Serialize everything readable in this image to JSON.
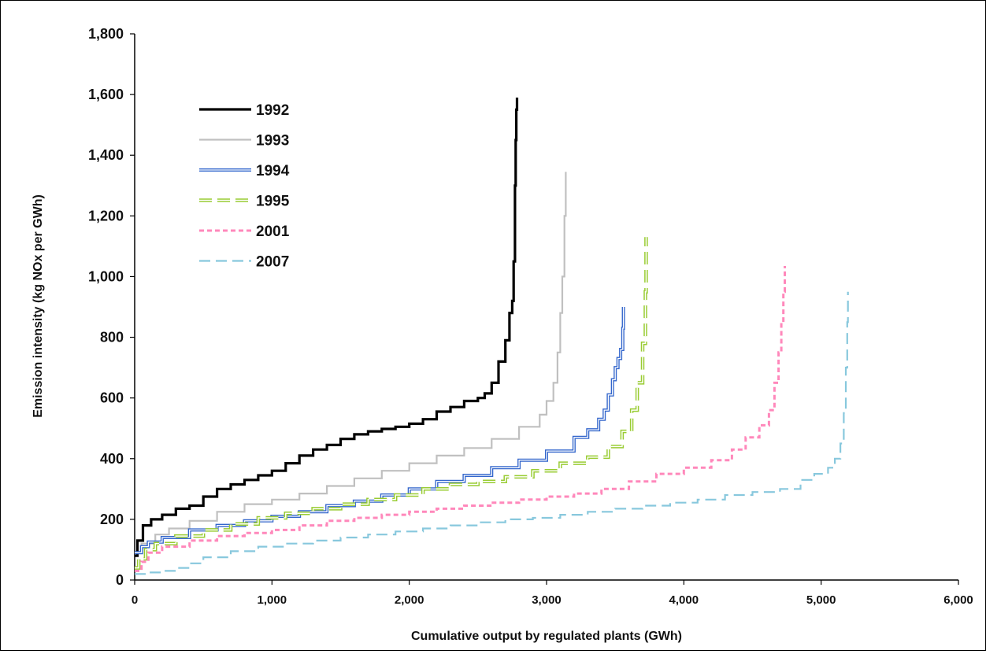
{
  "chart_data": {
    "type": "line",
    "title": "",
    "xlabel": "Cumulative output by regulated plants (GWh)",
    "ylabel": "Emission intensity (kg NOx per GWh)",
    "xlim": [
      0,
      6000
    ],
    "ylim": [
      0,
      1800
    ],
    "x_ticks": [
      0,
      1000,
      2000,
      3000,
      4000,
      5000,
      6000
    ],
    "x_tick_labels": [
      "0",
      "1,000",
      "2,000",
      "3,000",
      "4,000",
      "5,000",
      "6,000"
    ],
    "y_ticks": [
      0,
      200,
      400,
      600,
      800,
      1000,
      1200,
      1400,
      1600,
      1800
    ],
    "y_tick_labels": [
      "0",
      "200",
      "400",
      "600",
      "800",
      "1,000",
      "1,200",
      "1,400",
      "1,600",
      "1,800"
    ],
    "grid": false,
    "legend_position": "top-left",
    "series": [
      {
        "name": "1992",
        "color": "#000000",
        "style": "solid-thick",
        "x": [
          0,
          20,
          60,
          120,
          200,
          300,
          400,
          500,
          600,
          700,
          800,
          900,
          1000,
          1100,
          1200,
          1300,
          1400,
          1500,
          1600,
          1700,
          1800,
          1900,
          2000,
          2100,
          2200,
          2300,
          2400,
          2500,
          2550,
          2600,
          2650,
          2700,
          2730,
          2750,
          2760,
          2770,
          2775,
          2780,
          2785
        ],
        "y": [
          80,
          130,
          180,
          200,
          215,
          235,
          245,
          275,
          300,
          315,
          330,
          345,
          360,
          385,
          410,
          430,
          445,
          465,
          480,
          490,
          498,
          505,
          515,
          530,
          555,
          570,
          590,
          600,
          615,
          650,
          720,
          790,
          880,
          920,
          1050,
          1300,
          1450,
          1550,
          1590
        ]
      },
      {
        "name": "1993",
        "color": "#c0c0c0",
        "style": "solid",
        "x": [
          0,
          50,
          150,
          250,
          400,
          600,
          800,
          1000,
          1200,
          1400,
          1600,
          1800,
          2000,
          2200,
          2400,
          2600,
          2800,
          2950,
          3000,
          3050,
          3080,
          3100,
          3115,
          3130,
          3140
        ],
        "y": [
          90,
          120,
          150,
          170,
          195,
          225,
          250,
          265,
          285,
          310,
          335,
          360,
          385,
          410,
          435,
          465,
          505,
          545,
          590,
          650,
          750,
          880,
          1000,
          1200,
          1345
        ]
      },
      {
        "name": "1994",
        "color": "#3366cc",
        "style": "double",
        "x": [
          0,
          50,
          100,
          200,
          400,
          600,
          800,
          1000,
          1200,
          1400,
          1600,
          1800,
          2000,
          2200,
          2400,
          2600,
          2800,
          3000,
          3200,
          3300,
          3380,
          3420,
          3450,
          3480,
          3500,
          3520,
          3540,
          3555,
          3560
        ],
        "y": [
          90,
          110,
          125,
          140,
          165,
          180,
          195,
          210,
          225,
          245,
          260,
          280,
          300,
          325,
          345,
          370,
          395,
          425,
          470,
          495,
          530,
          560,
          610,
          660,
          700,
          730,
          760,
          830,
          900
        ]
      },
      {
        "name": "1995",
        "color": "#99cc33",
        "style": "dashed-double",
        "x": [
          0,
          30,
          80,
          150,
          300,
          500,
          700,
          900,
          1100,
          1300,
          1500,
          1700,
          1900,
          2100,
          2300,
          2500,
          2700,
          2900,
          3100,
          3300,
          3450,
          3550,
          3620,
          3660,
          3700,
          3720,
          3725
        ],
        "y": [
          40,
          70,
          100,
          120,
          145,
          165,
          185,
          205,
          220,
          235,
          250,
          265,
          280,
          300,
          315,
          325,
          340,
          360,
          385,
          405,
          440,
          490,
          560,
          650,
          780,
          950,
          1130
        ]
      },
      {
        "name": "2001",
        "color": "#ff88bb",
        "style": "dashed",
        "x": [
          0,
          50,
          100,
          200,
          400,
          600,
          800,
          1000,
          1200,
          1400,
          1600,
          1800,
          2000,
          2200,
          2400,
          2600,
          2800,
          3000,
          3200,
          3400,
          3600,
          3800,
          4000,
          4200,
          4350,
          4450,
          4550,
          4620,
          4660,
          4690,
          4710,
          4725,
          4735
        ],
        "y": [
          30,
          60,
          90,
          110,
          130,
          145,
          155,
          165,
          180,
          195,
          205,
          215,
          225,
          235,
          245,
          255,
          265,
          275,
          285,
          300,
          325,
          350,
          370,
          395,
          430,
          470,
          510,
          560,
          650,
          750,
          850,
          950,
          1035
        ]
      },
      {
        "name": "2007",
        "color": "#88c8dd",
        "style": "long-dash",
        "x": [
          0,
          100,
          200,
          300,
          400,
          500,
          700,
          900,
          1100,
          1300,
          1500,
          1700,
          1900,
          2100,
          2300,
          2500,
          2700,
          2900,
          3100,
          3300,
          3500,
          3700,
          3900,
          4100,
          4300,
          4500,
          4700,
          4850,
          4950,
          5050,
          5100,
          5140,
          5165,
          5180,
          5190,
          5195
        ],
        "y": [
          20,
          25,
          30,
          40,
          55,
          75,
          95,
          110,
          120,
          130,
          140,
          150,
          160,
          170,
          180,
          190,
          200,
          205,
          215,
          225,
          235,
          245,
          255,
          265,
          280,
          290,
          300,
          330,
          350,
          370,
          400,
          450,
          550,
          700,
          850,
          950
        ]
      }
    ]
  }
}
